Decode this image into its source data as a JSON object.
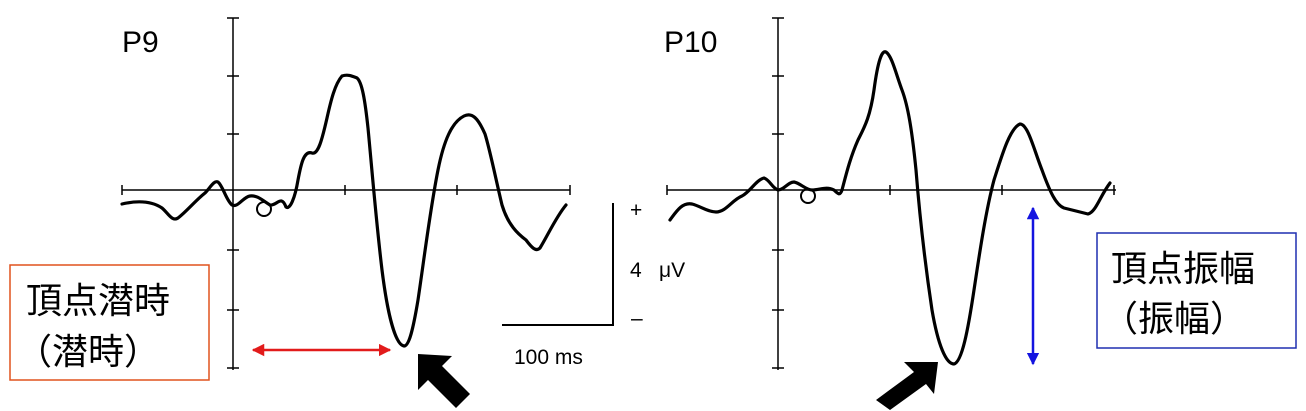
{
  "panels": [
    {
      "title": "P9"
    },
    {
      "title": "P10"
    }
  ],
  "scale_bar": {
    "plus": "+",
    "minus": "–",
    "amplitude_value": "4",
    "amplitude_unit": "μV",
    "time": "100 ms"
  },
  "boxes": {
    "latency": {
      "line1": "頂点潜時",
      "line2": "（潜時）",
      "border_color": "#e0521d",
      "arrow_color": "#e21b1b"
    },
    "amplitude": {
      "line1": "頂点振幅",
      "line2": "（振幅）",
      "border_color": "#1f2fb0",
      "arrow_color": "#1414e0"
    }
  },
  "colors": {
    "trace": "#000000",
    "axis": "#000000"
  }
}
